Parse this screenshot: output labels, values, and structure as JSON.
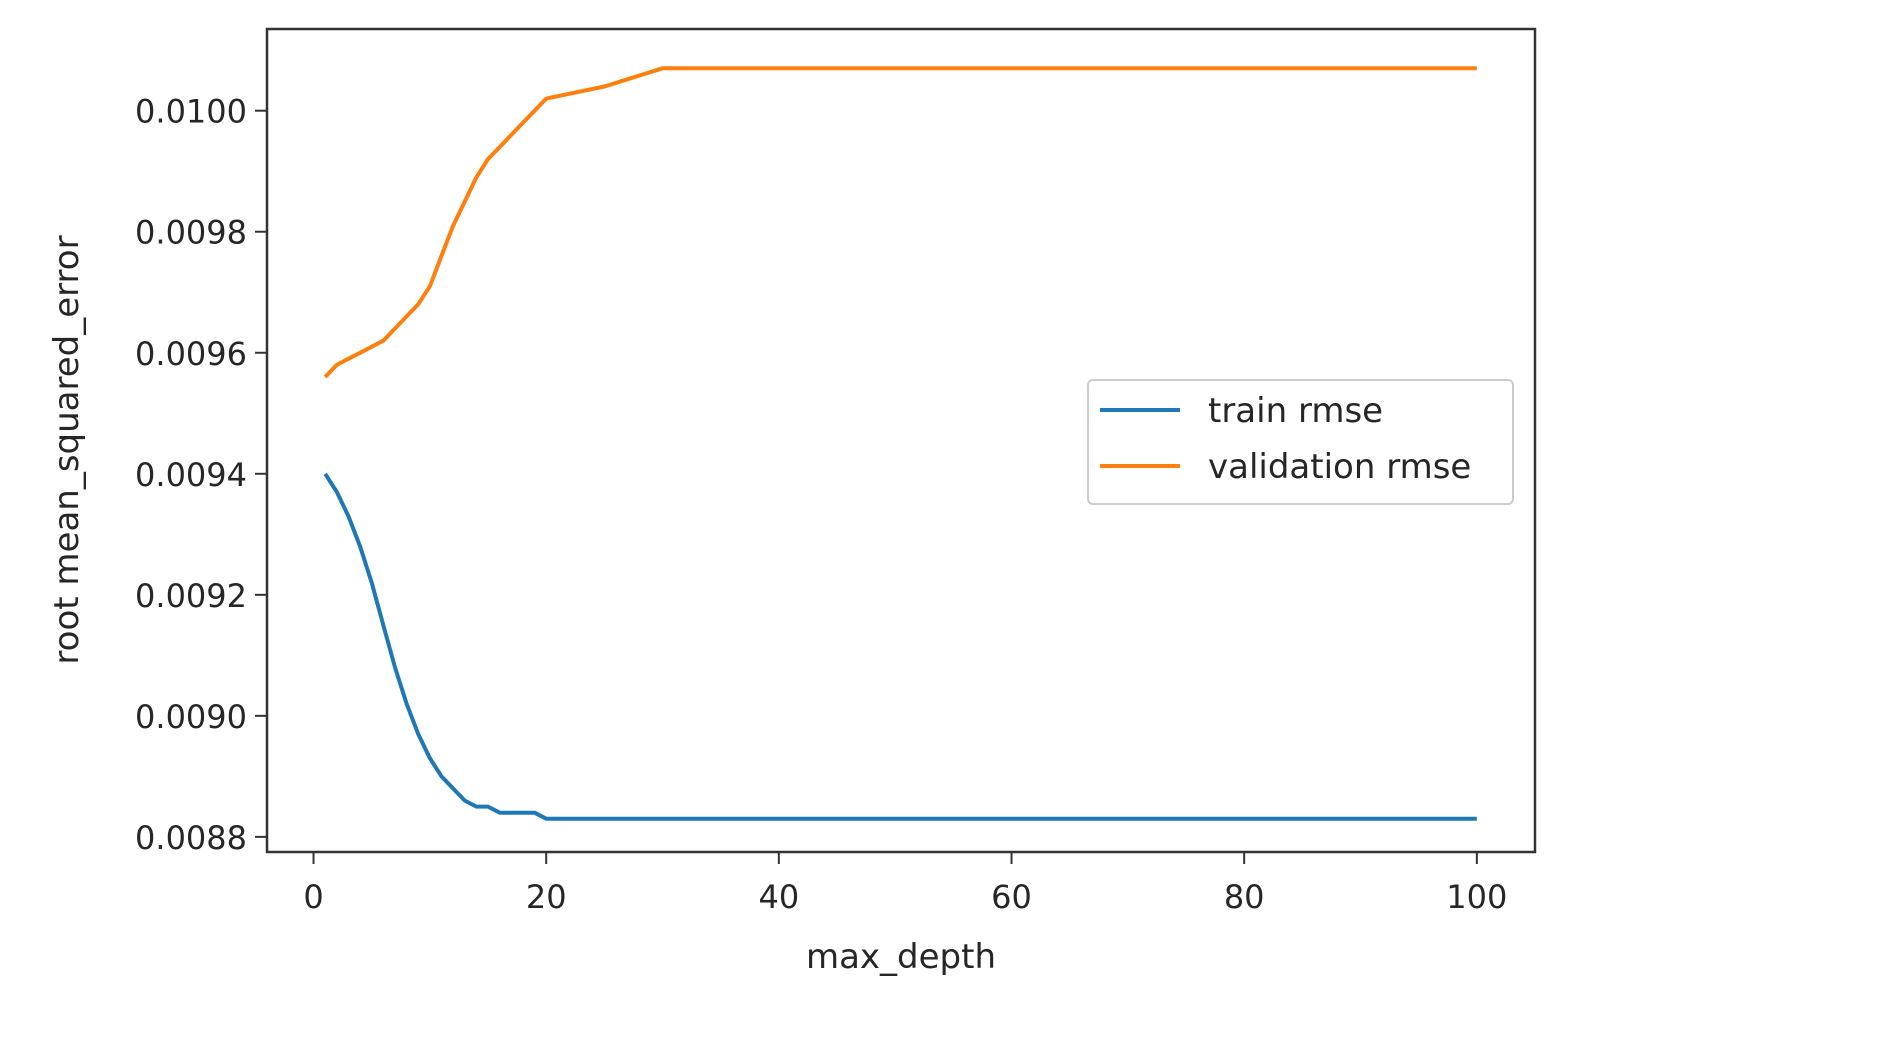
{
  "chart_data": {
    "type": "line",
    "title": "",
    "xlabel": "max_depth",
    "ylabel": "root mean_squared_error",
    "xlim": [
      -4.0,
      105.0
    ],
    "ylim": [
      0.008775,
      0.010135
    ],
    "xticks": [
      0,
      20,
      40,
      60,
      80,
      100
    ],
    "xtick_labels": [
      "0",
      "20",
      "40",
      "60",
      "80",
      "100"
    ],
    "yticks": [
      0.0088,
      0.009,
      0.0092,
      0.0094,
      0.0096,
      0.0098,
      0.01
    ],
    "ytick_labels": [
      "0.0088",
      "0.0090",
      "0.0092",
      "0.0094",
      "0.0096",
      "0.0098",
      "0.0100"
    ],
    "grid": false,
    "legend_position": "center right",
    "x": [
      1,
      2,
      3,
      4,
      5,
      6,
      7,
      8,
      9,
      10,
      11,
      12,
      13,
      14,
      15,
      16,
      17,
      18,
      19,
      20,
      25,
      30,
      40,
      50,
      60,
      70,
      80,
      90,
      100
    ],
    "series": [
      {
        "name": "train rmse",
        "color": "#1f77b4",
        "values": [
          0.0094,
          0.00937,
          0.00933,
          0.00928,
          0.00922,
          0.00915,
          0.00908,
          0.00902,
          0.00897,
          0.00893,
          0.0089,
          0.00888,
          0.00886,
          0.00885,
          0.00885,
          0.00884,
          0.00884,
          0.00884,
          0.00884,
          0.00883,
          0.00883,
          0.00883,
          0.00883,
          0.00883,
          0.00883,
          0.00883,
          0.00883,
          0.00883,
          0.00883
        ]
      },
      {
        "name": "validation rmse",
        "color": "#ff7f0e",
        "values": [
          0.00956,
          0.00958,
          0.00959,
          0.0096,
          0.00961,
          0.00962,
          0.00964,
          0.00966,
          0.00968,
          0.00971,
          0.00976,
          0.00981,
          0.00985,
          0.00989,
          0.00992,
          0.00994,
          0.00996,
          0.00998,
          0.01,
          0.01002,
          0.01004,
          0.01007,
          0.01007,
          0.01007,
          0.01007,
          0.01007,
          0.01007,
          0.01007,
          0.01007
        ]
      }
    ]
  }
}
